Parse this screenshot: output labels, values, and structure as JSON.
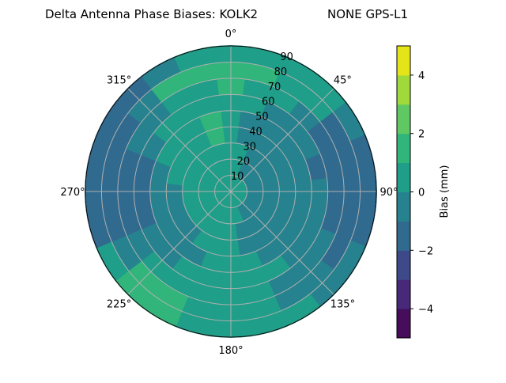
{
  "chart_data": {
    "type": "heatmap",
    "subtype": "polar-contour",
    "title_left": "Delta Antenna Phase Biases: KOLK2",
    "title_right": "NONE GPS-L1",
    "angular_ticks": [
      "0°",
      "45°",
      "90°",
      "135°",
      "180°",
      "225°",
      "270°",
      "315°"
    ],
    "radial_ticks": [
      "10",
      "20",
      "30",
      "40",
      "50",
      "60",
      "70",
      "80",
      "90"
    ],
    "radial_range": [
      0,
      90
    ],
    "grid": true,
    "azimuth_direction": "clockwise",
    "zero_location": "top",
    "azimuth_bins_deg": [
      0,
      15,
      30,
      45,
      60,
      75,
      90,
      105,
      120,
      135,
      150,
      165,
      180,
      195,
      210,
      225,
      240,
      255,
      270,
      285,
      300,
      315,
      330,
      345
    ],
    "radial_bins": [
      [
        0,
        10
      ],
      [
        10,
        20
      ],
      [
        20,
        30
      ],
      [
        30,
        40
      ],
      [
        40,
        50
      ],
      [
        50,
        60
      ],
      [
        60,
        70
      ],
      [
        70,
        80
      ],
      [
        80,
        90
      ]
    ],
    "values_mm": [
      [
        0.5,
        0.5,
        0.5,
        0.5,
        0.5,
        0.5,
        0.5,
        0.5,
        0.5,
        0.5,
        0.5,
        0.5,
        0.5,
        0.5,
        0.5,
        0.5,
        0.5,
        0.5,
        0.5,
        0.5,
        0.5,
        0.5,
        0.5,
        0.5
      ],
      [
        0.5,
        0.5,
        -0.5,
        -0.5,
        -0.5,
        -0.5,
        -0.5,
        -0.5,
        -0.5,
        -0.5,
        -0.5,
        0.5,
        0.5,
        0.5,
        0.5,
        0.5,
        0.5,
        0.5,
        0.5,
        0.5,
        0.5,
        0.5,
        0.5,
        0.5
      ],
      [
        0.5,
        0.5,
        -0.5,
        -0.5,
        -0.5,
        -0.5,
        -0.5,
        -0.5,
        -0.5,
        -0.5,
        -0.5,
        -0.5,
        0.5,
        0.5,
        0.5,
        0.5,
        0.5,
        0.5,
        0.5,
        0.5,
        0.5,
        0.5,
        0.5,
        0.5
      ],
      [
        0.5,
        -0.5,
        -0.5,
        -0.5,
        -0.5,
        -0.5,
        -0.5,
        -0.5,
        -0.5,
        -0.5,
        -0.5,
        -0.5,
        0.5,
        0.5,
        0.5,
        -0.5,
        -0.5,
        -0.5,
        -0.5,
        0.5,
        0.5,
        0.5,
        0.5,
        1.5
      ],
      [
        0.5,
        -0.5,
        -0.5,
        -0.5,
        -0.5,
        -0.5,
        -0.5,
        -0.5,
        -0.5,
        -0.5,
        -0.5,
        0.5,
        0.5,
        0.5,
        -0.5,
        -0.5,
        -0.5,
        -0.5,
        -0.5,
        -0.5,
        0.5,
        0.5,
        0.5,
        1.5
      ],
      [
        0.5,
        0.5,
        -0.5,
        -0.5,
        -0.5,
        -1.5,
        -0.5,
        -0.5,
        -0.5,
        -0.5,
        0.5,
        0.5,
        0.5,
        0.5,
        0.5,
        -0.5,
        -0.5,
        -1.5,
        -1.5,
        -1.5,
        -0.5,
        0.5,
        0.5,
        0.5
      ],
      [
        1.5,
        0.5,
        0.5,
        -0.5,
        -1.5,
        -1.5,
        -1.5,
        -1.5,
        -0.5,
        -0.5,
        -0.5,
        0.5,
        0.5,
        0.5,
        0.5,
        0.5,
        -0.5,
        -1.5,
        -1.5,
        -1.5,
        -0.5,
        -0.5,
        0.5,
        0.5
      ],
      [
        1.5,
        1.5,
        0.5,
        0.5,
        -1.5,
        -1.5,
        -1.5,
        -1.5,
        -1.5,
        -0.5,
        -0.5,
        0.5,
        0.5,
        0.5,
        1.5,
        1.5,
        -0.5,
        -1.5,
        -1.5,
        -1.5,
        -1.5,
        -0.5,
        1.5,
        1.5
      ],
      [
        0.5,
        0.5,
        0.5,
        0.5,
        -0.5,
        -1.5,
        -1.5,
        -1.5,
        -0.5,
        -0.5,
        0.5,
        0.5,
        0.5,
        0.5,
        1.5,
        1.5,
        0.5,
        -1.5,
        -1.5,
        -1.5,
        -1.5,
        -1.5,
        -0.5,
        0.5
      ]
    ],
    "colorbar": {
      "label": "Bias (mm)",
      "range": [
        -5,
        5
      ],
      "levels": [
        -5,
        -4,
        -3,
        -2,
        -1,
        0,
        1,
        2,
        3,
        4,
        5
      ],
      "ticks": [
        "−4",
        "−2",
        "0",
        "2",
        "4"
      ],
      "tick_values": [
        -4,
        -2,
        0,
        2,
        4
      ],
      "colormap": "viridis",
      "colors": [
        "#450d5a",
        "#482878",
        "#3e4989",
        "#306a8e",
        "#26828e",
        "#1f9e89",
        "#31b57b",
        "#5fc862",
        "#9fda3a",
        "#e4e419"
      ]
    }
  }
}
